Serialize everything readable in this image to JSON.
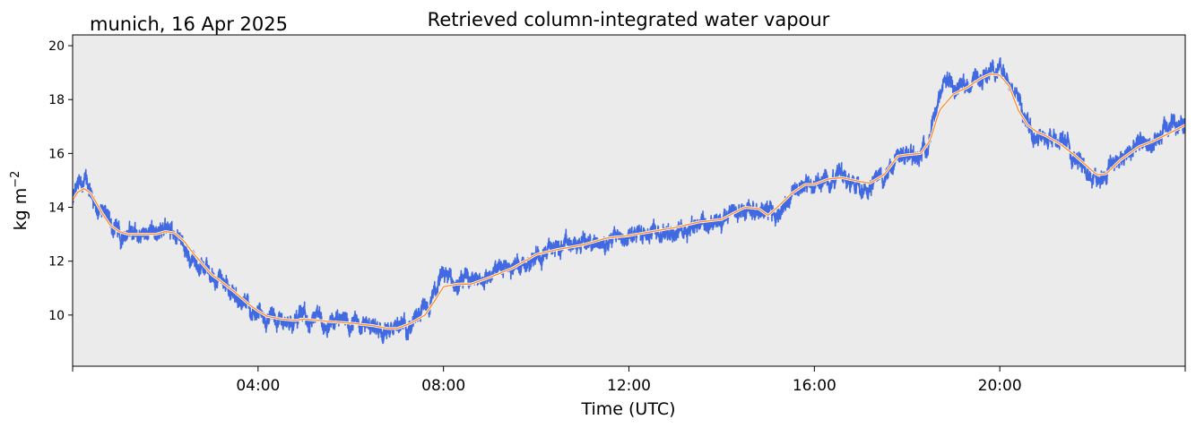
{
  "chart_data": {
    "type": "line",
    "title": "Retrieved column-integrated water vapour",
    "subtitle": "munich, 16 Apr 2025",
    "xlabel": "Time (UTC)",
    "ylabel_main": "kg m",
    "ylabel_sup": "−2",
    "xlim": [
      0,
      24
    ],
    "ylim": [
      8.1,
      20.4
    ],
    "xticks": [
      {
        "value": 0,
        "label": ""
      },
      {
        "value": 4,
        "label": "04:00"
      },
      {
        "value": 8,
        "label": "08:00"
      },
      {
        "value": 12,
        "label": "12:00"
      },
      {
        "value": 16,
        "label": "16:00"
      },
      {
        "value": 20,
        "label": "20:00"
      },
      {
        "value": 24,
        "label": ""
      }
    ],
    "yticks": [
      10,
      12,
      14,
      16,
      18,
      20
    ],
    "grid": false,
    "background_color": "#ebebeb",
    "series": [
      {
        "color": "#4169e1",
        "style": "noisy-scatter",
        "x": [
          0.0,
          0.1,
          0.25,
          0.4,
          0.5,
          0.65,
          0.8,
          1.0,
          1.05,
          1.1,
          1.2,
          1.3,
          1.4,
          1.6,
          1.8,
          2.0,
          2.2,
          2.3,
          2.4,
          2.6,
          2.8,
          3.0,
          3.2,
          3.5,
          3.8,
          4.0,
          4.2,
          4.5,
          4.8,
          5.0,
          5.2,
          5.5,
          6.0,
          6.5,
          6.7,
          6.9,
          7.2,
          7.5,
          7.7,
          7.9,
          8.0,
          8.3,
          8.6,
          9.0,
          9.5,
          10.0,
          10.4,
          10.8,
          11.0,
          11.5,
          11.7,
          12.0,
          12.5,
          13.0,
          13.3,
          13.5,
          14.0,
          14.3,
          14.6,
          14.9,
          15.2,
          15.3,
          15.6,
          15.8,
          16.0,
          16.3,
          16.6,
          16.8,
          17.0,
          17.2,
          17.5,
          17.8,
          18.0,
          18.2,
          18.4,
          18.6,
          18.7,
          18.8,
          19.0,
          19.3,
          19.5,
          19.8,
          20.0,
          20.2,
          20.4,
          20.5,
          20.7,
          21.0,
          21.3,
          21.5,
          21.7,
          21.9,
          22.1,
          22.3,
          22.6,
          23.0,
          23.3,
          23.6,
          23.8,
          24.0
        ],
        "y": [
          14.2,
          14.7,
          14.85,
          14.6,
          14.2,
          13.7,
          13.35,
          13.0,
          12.5,
          13.0,
          13.2,
          13.1,
          13.0,
          13.0,
          13.0,
          13.1,
          13.05,
          12.9,
          12.6,
          12.2,
          11.75,
          11.4,
          11.2,
          10.8,
          10.3,
          10.1,
          9.95,
          9.8,
          9.8,
          9.9,
          9.8,
          9.7,
          9.7,
          9.6,
          9.5,
          9.4,
          9.6,
          9.9,
          10.3,
          11.0,
          11.5,
          11.1,
          11.2,
          11.5,
          11.8,
          12.3,
          12.5,
          12.5,
          12.7,
          12.6,
          13.0,
          12.9,
          13.0,
          13.1,
          13.3,
          13.5,
          13.4,
          13.7,
          14.1,
          14.0,
          13.6,
          14.1,
          14.7,
          14.9,
          14.8,
          15.1,
          15.2,
          15.0,
          15.0,
          14.85,
          15.1,
          15.85,
          15.95,
          15.9,
          16.3,
          17.5,
          18.0,
          18.4,
          18.3,
          18.6,
          18.8,
          19.0,
          19.1,
          18.9,
          18.3,
          17.5,
          16.9,
          16.7,
          16.5,
          16.2,
          15.8,
          15.3,
          15.1,
          15.4,
          15.9,
          16.3,
          16.5,
          16.8,
          17.0,
          17.2
        ]
      },
      {
        "color": "#ff8c2e",
        "style": "smooth-line",
        "x": [
          0.0,
          0.1,
          0.25,
          0.4,
          0.5,
          0.65,
          0.8,
          1.0,
          1.2,
          1.4,
          1.6,
          1.8,
          2.0,
          2.2,
          2.4,
          2.6,
          2.8,
          3.0,
          3.2,
          3.5,
          3.8,
          4.0,
          4.2,
          4.5,
          4.8,
          5.0,
          5.3,
          5.6,
          6.0,
          6.5,
          6.8,
          7.0,
          7.3,
          7.6,
          7.8,
          8.0,
          8.3,
          8.6,
          9.0,
          9.5,
          10.0,
          10.5,
          11.0,
          11.5,
          12.0,
          12.5,
          13.0,
          13.5,
          14.0,
          14.5,
          14.8,
          15.0,
          15.2,
          15.5,
          15.8,
          16.0,
          16.3,
          16.6,
          17.0,
          17.2,
          17.5,
          17.8,
          18.0,
          18.3,
          18.5,
          18.7,
          19.0,
          19.3,
          19.6,
          19.8,
          20.0,
          20.2,
          20.4,
          20.6,
          20.8,
          21.0,
          21.3,
          21.6,
          21.9,
          22.1,
          22.3,
          22.6,
          23.0,
          23.3,
          23.6,
          24.0
        ],
        "y": [
          14.25,
          14.55,
          14.7,
          14.5,
          14.2,
          13.75,
          13.35,
          13.1,
          13.0,
          13.0,
          13.0,
          13.0,
          13.1,
          13.05,
          12.75,
          12.3,
          11.9,
          11.5,
          11.25,
          10.85,
          10.4,
          10.15,
          9.95,
          9.85,
          9.8,
          9.85,
          9.8,
          9.75,
          9.7,
          9.6,
          9.5,
          9.5,
          9.7,
          10.0,
          10.5,
          11.05,
          11.15,
          11.15,
          11.4,
          11.75,
          12.25,
          12.45,
          12.6,
          12.85,
          12.95,
          13.1,
          13.25,
          13.45,
          13.55,
          14.0,
          13.95,
          13.7,
          14.0,
          14.5,
          14.85,
          14.85,
          15.05,
          15.1,
          14.95,
          14.9,
          15.2,
          15.9,
          15.95,
          16.0,
          16.5,
          17.6,
          18.2,
          18.45,
          18.8,
          18.95,
          18.9,
          18.5,
          17.6,
          17.05,
          16.8,
          16.65,
          16.35,
          15.95,
          15.5,
          15.2,
          15.25,
          15.75,
          16.25,
          16.45,
          16.7,
          17.05
        ]
      }
    ]
  }
}
